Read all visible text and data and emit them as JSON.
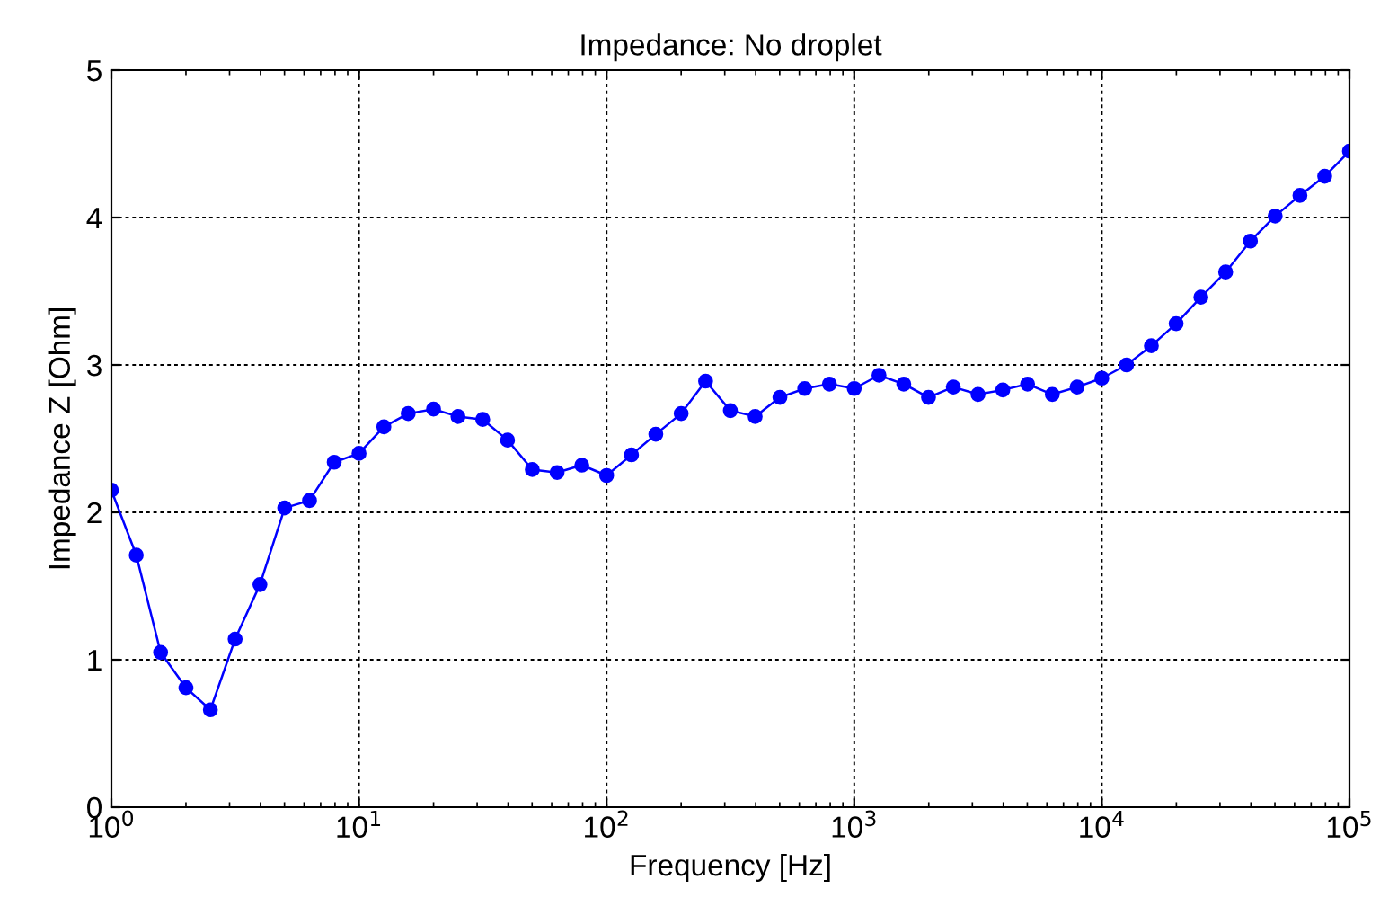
{
  "chart_data": {
    "type": "line",
    "title": "Impedance: No droplet",
    "xlabel": "Frequency [Hz]",
    "ylabel": "Impedance Z [Ohm]",
    "x": [
      1,
      1.26,
      1.58,
      2,
      2.51,
      3.16,
      3.98,
      5.01,
      6.31,
      7.94,
      10,
      12.6,
      15.8,
      20,
      25.1,
      31.6,
      39.8,
      50.1,
      63.1,
      79.4,
      100,
      126,
      158,
      200,
      251,
      316,
      398,
      501,
      631,
      794,
      1000,
      1259,
      1585,
      1995,
      2512,
      3162,
      3981,
      5012,
      6310,
      7943,
      10000,
      12589,
      15849,
      19953,
      25119,
      31623,
      39811,
      50119,
      63096,
      79433,
      100000
    ],
    "series": [
      {
        "color": "#0000ff",
        "values": [
          2.15,
          1.71,
          1.05,
          0.81,
          0.66,
          1.14,
          1.51,
          2.03,
          2.08,
          2.34,
          2.4,
          2.58,
          2.67,
          2.7,
          2.65,
          2.63,
          2.49,
          2.29,
          2.27,
          2.32,
          2.25,
          2.39,
          2.53,
          2.67,
          2.89,
          2.69,
          2.65,
          2.78,
          2.84,
          2.87,
          2.84,
          2.93,
          2.87,
          2.78,
          2.85,
          2.8,
          2.83,
          2.87,
          2.8,
          2.85,
          2.91,
          3.0,
          3.13,
          3.28,
          3.46,
          3.63,
          3.84,
          4.01,
          4.15,
          4.28,
          4.45
        ]
      }
    ],
    "log": "x",
    "xlim": [
      1,
      100000
    ],
    "xticks": [
      {
        "value": 1,
        "label": "10$^{0}$"
      },
      {
        "value": 10,
        "label": "10$^{1}$"
      },
      {
        "value": 100,
        "label": "10$^{2}$"
      },
      {
        "value": 1000,
        "label": "10$^{3}$"
      },
      {
        "value": 10000,
        "label": "10$^{4}$"
      },
      {
        "value": 100000,
        "label": "10$^{5}$"
      }
    ],
    "ylim": [
      0,
      5
    ],
    "yticks": [
      0,
      1,
      2,
      3,
      4,
      5
    ],
    "grid": true,
    "marker": "circle",
    "line_style": "solid"
  }
}
